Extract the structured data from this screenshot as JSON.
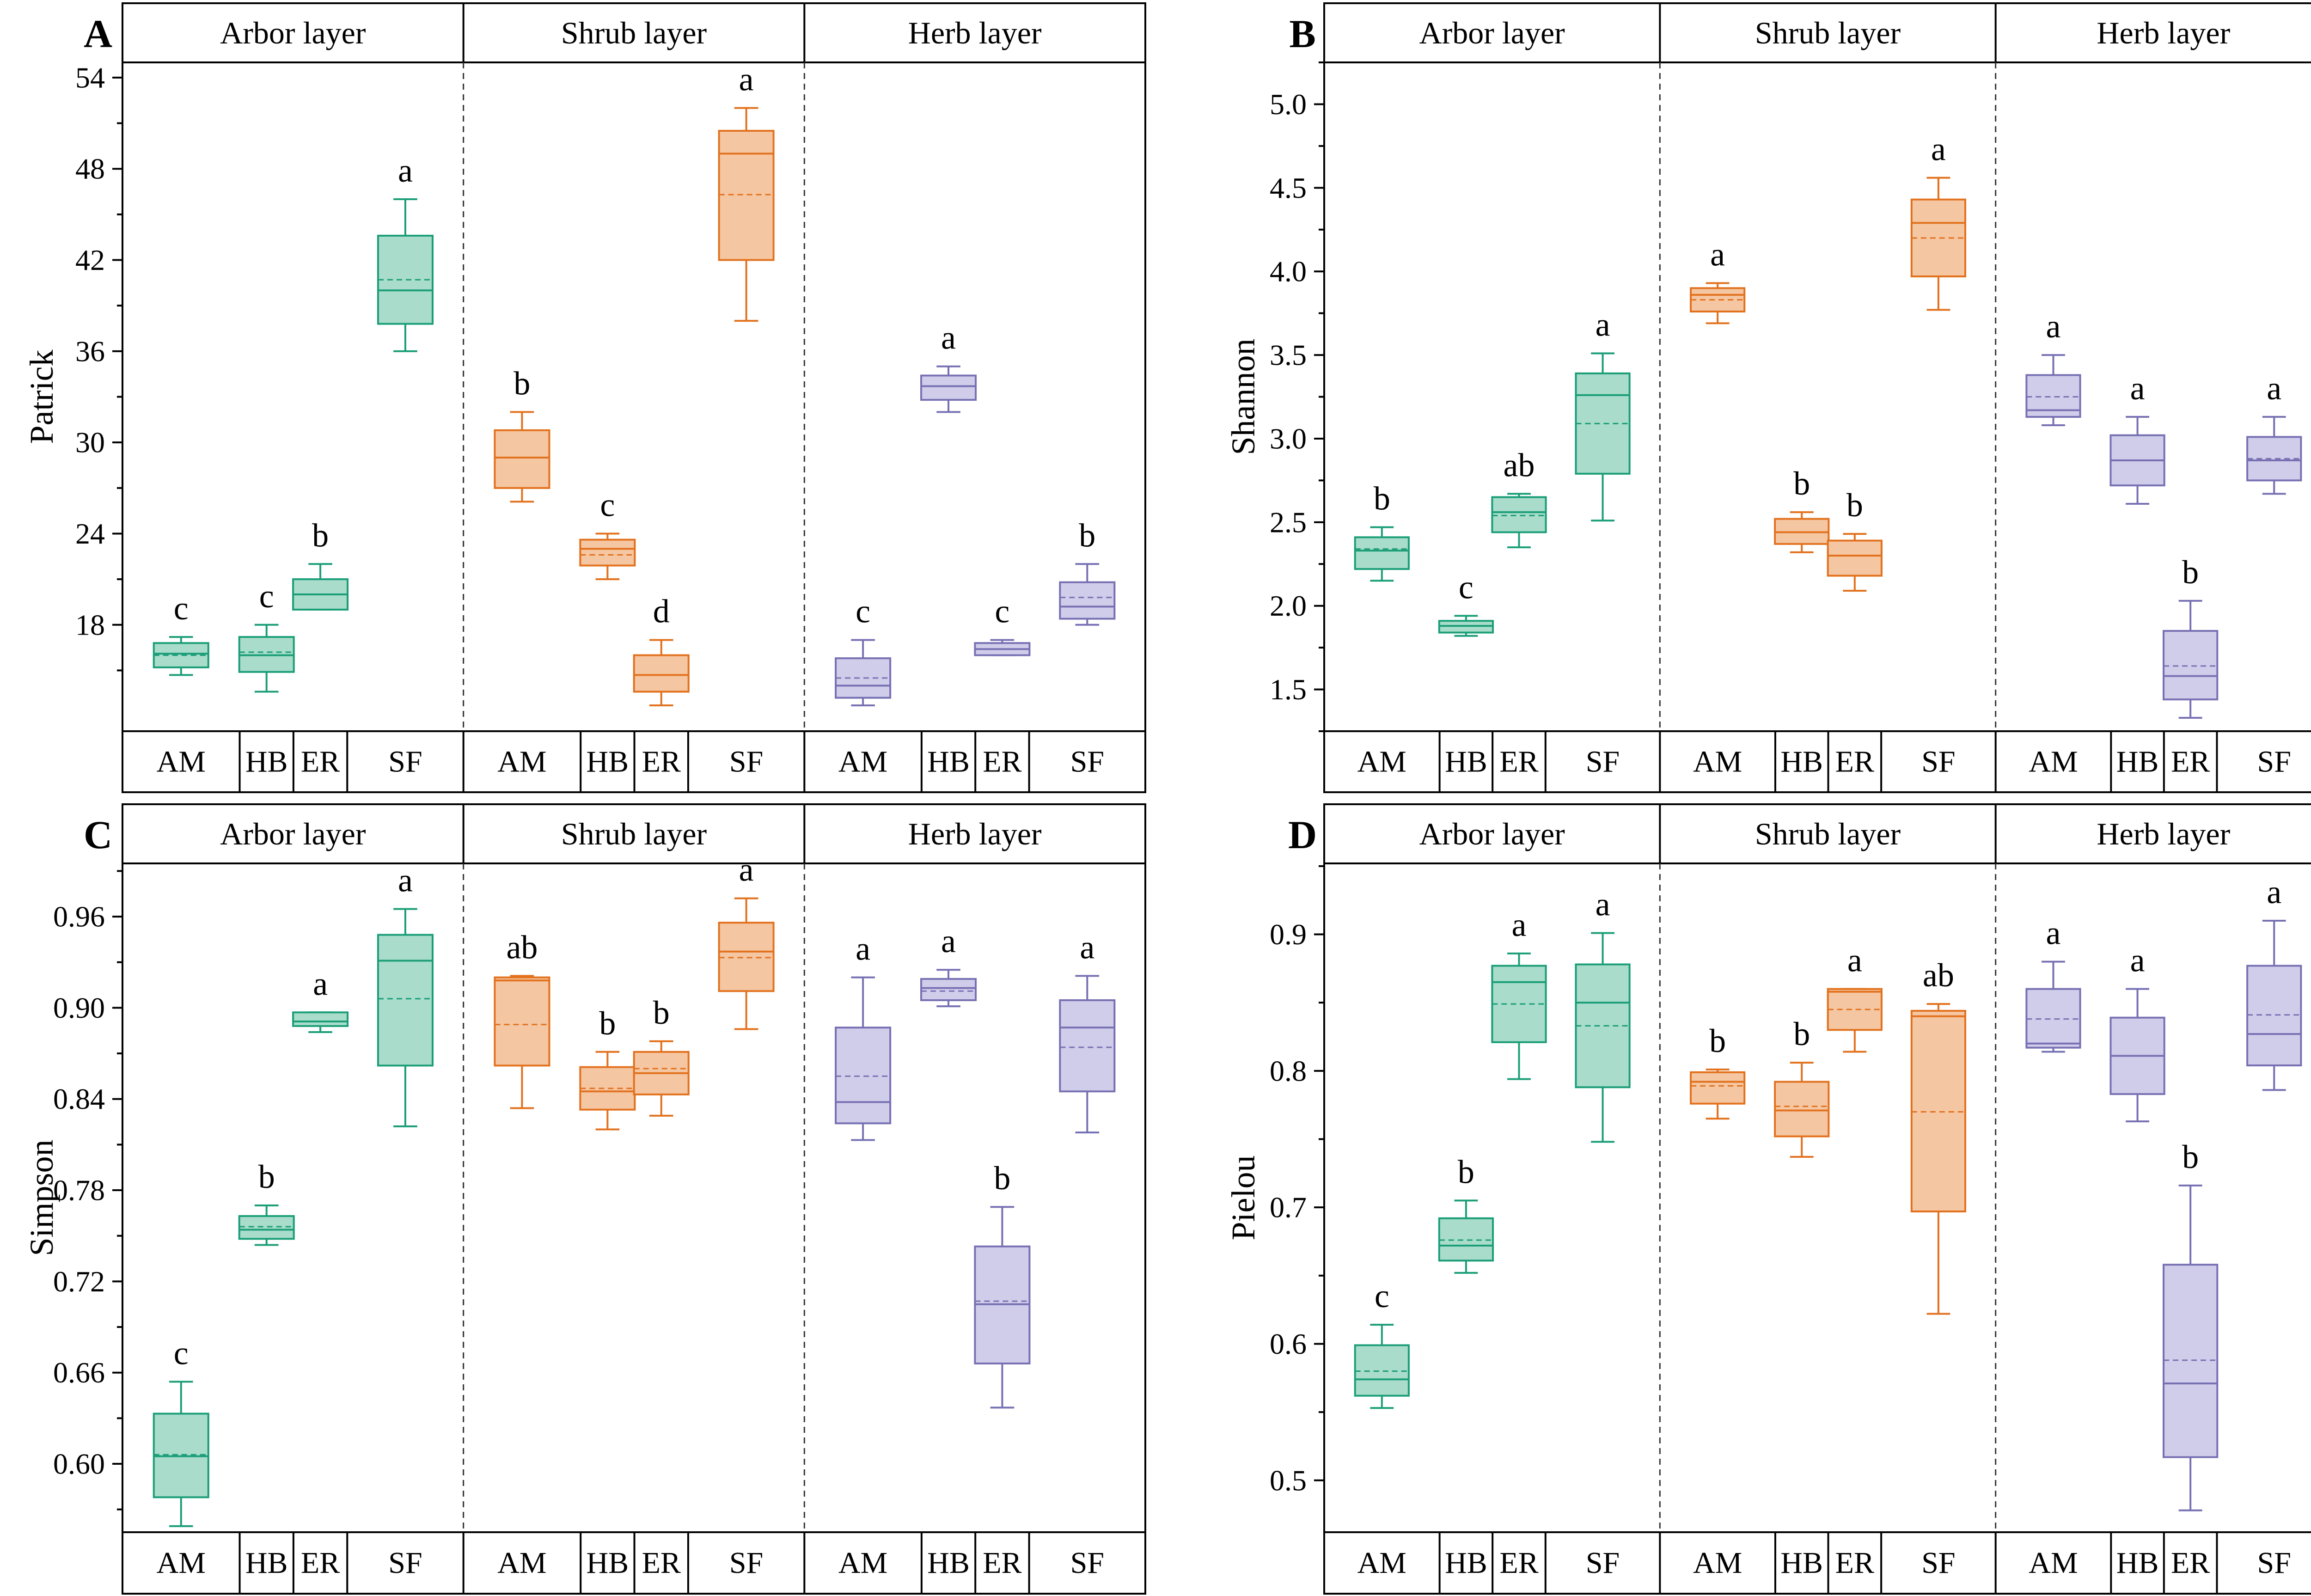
{
  "colors": {
    "arbor": "#1a9e77",
    "arbor_fill": "#a9dccb",
    "shrub": "#e2711d",
    "shrub_fill": "#f5c6a2",
    "herb": "#7670b3",
    "herb_fill": "#d0cdea"
  },
  "chart_data": [
    {
      "panel": "A",
      "type": "box",
      "ylabel": "Patrick",
      "ylim": [
        11,
        55
      ],
      "yticks": [
        18,
        24,
        30,
        36,
        42,
        48,
        54
      ],
      "ytick_labels": [
        "18",
        "24",
        "30",
        "36",
        "42",
        "48",
        "54"
      ],
      "groups": [
        {
          "layer": "Arbor layer",
          "color": "arbor",
          "categories": [
            "AM",
            "HB",
            "ER",
            "SF"
          ],
          "boxes": [
            {
              "cat": "AM",
              "min": 14.7,
              "q1": 15.2,
              "median": 16.1,
              "mean": 16.0,
              "q3": 16.8,
              "max": 17.2,
              "label": "c"
            },
            {
              "cat": "HB",
              "min": 13.6,
              "q1": 14.9,
              "median": 16.0,
              "mean": 16.2,
              "q3": 17.2,
              "max": 18.0,
              "label": "c"
            },
            {
              "cat": "ER",
              "min": 19.0,
              "q1": 19.0,
              "median": 20.0,
              "mean": 20.0,
              "q3": 21.0,
              "max": 22.0,
              "label": "b"
            },
            {
              "cat": "SF",
              "min": 36.0,
              "q1": 37.8,
              "median": 40.0,
              "mean": 40.7,
              "q3": 43.6,
              "max": 46.0,
              "label": "a"
            }
          ]
        },
        {
          "layer": "Shrub layer",
          "color": "shrub",
          "categories": [
            "AM",
            "HB",
            "ER",
            "SF"
          ],
          "boxes": [
            {
              "cat": "AM",
              "min": 26.1,
              "q1": 27.0,
              "median": 29.0,
              "mean": 29.0,
              "q3": 30.8,
              "max": 32.0,
              "label": "b"
            },
            {
              "cat": "HB",
              "min": 21.0,
              "q1": 21.9,
              "median": 23.0,
              "mean": 22.6,
              "q3": 23.6,
              "max": 24.0,
              "label": "c"
            },
            {
              "cat": "ER",
              "min": 12.7,
              "q1": 13.6,
              "median": 14.7,
              "mean": 14.7,
              "q3": 16.0,
              "max": 17.0,
              "label": "d"
            },
            {
              "cat": "SF",
              "min": 38.0,
              "q1": 42.0,
              "median": 49.0,
              "mean": 46.3,
              "q3": 50.5,
              "max": 52.0,
              "label": "a"
            }
          ]
        },
        {
          "layer": "Herb layer",
          "color": "herb",
          "categories": [
            "AM",
            "HB",
            "ER",
            "SF"
          ],
          "boxes": [
            {
              "cat": "AM",
              "min": 12.7,
              "q1": 13.2,
              "median": 14.0,
              "mean": 14.5,
              "q3": 15.8,
              "max": 17.0,
              "label": "c"
            },
            {
              "cat": "HB",
              "min": 32.0,
              "q1": 32.8,
              "median": 33.7,
              "mean": 33.7,
              "q3": 34.4,
              "max": 35.0,
              "label": "a"
            },
            {
              "cat": "ER",
              "min": 16.0,
              "q1": 16.0,
              "median": 16.4,
              "mean": 16.4,
              "q3": 16.8,
              "max": 17.0,
              "label": "c"
            },
            {
              "cat": "SF",
              "min": 18.0,
              "q1": 18.4,
              "median": 19.2,
              "mean": 19.8,
              "q3": 20.8,
              "max": 22.0,
              "label": "b"
            }
          ]
        }
      ]
    },
    {
      "panel": "B",
      "type": "box",
      "ylabel": "Shannon",
      "ylim": [
        1.25,
        5.25
      ],
      "yticks": [
        1.5,
        2.0,
        2.5,
        3.0,
        3.5,
        4.0,
        4.5,
        5.0
      ],
      "ytick_labels": [
        "1.5",
        "2.0",
        "2.5",
        "3.0",
        "3.5",
        "4.0",
        "4.5",
        "5.0"
      ],
      "groups": [
        {
          "layer": "Arbor layer",
          "color": "arbor",
          "categories": [
            "AM",
            "HB",
            "ER",
            "SF"
          ],
          "boxes": [
            {
              "cat": "AM",
              "min": 2.15,
              "q1": 2.22,
              "median": 2.33,
              "mean": 2.34,
              "q3": 2.41,
              "max": 2.47,
              "label": "b"
            },
            {
              "cat": "HB",
              "min": 1.82,
              "q1": 1.84,
              "median": 1.88,
              "mean": 1.88,
              "q3": 1.91,
              "max": 1.94,
              "label": "c"
            },
            {
              "cat": "ER",
              "min": 2.35,
              "q1": 2.44,
              "median": 2.56,
              "mean": 2.54,
              "q3": 2.65,
              "max": 2.67,
              "label": "ab"
            },
            {
              "cat": "SF",
              "min": 2.51,
              "q1": 2.79,
              "median": 3.26,
              "mean": 3.09,
              "q3": 3.39,
              "max": 3.51,
              "label": "a"
            }
          ]
        },
        {
          "layer": "Shrub layer",
          "color": "shrub",
          "categories": [
            "AM",
            "HB",
            "ER",
            "SF"
          ],
          "boxes": [
            {
              "cat": "AM",
              "min": 3.69,
              "q1": 3.76,
              "median": 3.86,
              "mean": 3.83,
              "q3": 3.9,
              "max": 3.93,
              "label": "a"
            },
            {
              "cat": "HB",
              "min": 2.32,
              "q1": 2.37,
              "median": 2.44,
              "mean": 2.44,
              "q3": 2.52,
              "max": 2.56,
              "label": "b"
            },
            {
              "cat": "ER",
              "min": 2.09,
              "q1": 2.18,
              "median": 2.3,
              "mean": 2.3,
              "q3": 2.39,
              "max": 2.43,
              "label": "b"
            },
            {
              "cat": "SF",
              "min": 3.77,
              "q1": 3.97,
              "median": 4.29,
              "mean": 4.2,
              "q3": 4.43,
              "max": 4.56,
              "label": "a"
            }
          ]
        },
        {
          "layer": "Herb layer",
          "color": "herb",
          "categories": [
            "AM",
            "HB",
            "ER",
            "SF"
          ],
          "boxes": [
            {
              "cat": "AM",
              "min": 3.08,
              "q1": 3.13,
              "median": 3.17,
              "mean": 3.25,
              "q3": 3.38,
              "max": 3.5,
              "label": "a"
            },
            {
              "cat": "HB",
              "min": 2.61,
              "q1": 2.72,
              "median": 2.87,
              "mean": 2.87,
              "q3": 3.02,
              "max": 3.13,
              "label": "a"
            },
            {
              "cat": "ER",
              "min": 1.33,
              "q1": 1.44,
              "median": 1.58,
              "mean": 1.64,
              "q3": 1.85,
              "max": 2.03,
              "label": "b"
            },
            {
              "cat": "SF",
              "min": 2.67,
              "q1": 2.75,
              "median": 2.87,
              "mean": 2.88,
              "q3": 3.01,
              "max": 3.13,
              "label": "a"
            }
          ]
        }
      ]
    },
    {
      "panel": "C",
      "type": "box",
      "ylabel": "Simpson",
      "ylim": [
        0.555,
        0.995
      ],
      "yticks": [
        0.6,
        0.66,
        0.72,
        0.78,
        0.84,
        0.9,
        0.96
      ],
      "ytick_labels": [
        "0.60",
        "0.66",
        "0.72",
        "0.78",
        "0.84",
        "0.90",
        "0.96"
      ],
      "groups": [
        {
          "layer": "Arbor layer",
          "color": "arbor",
          "categories": [
            "AM",
            "HB",
            "ER",
            "SF"
          ],
          "boxes": [
            {
              "cat": "AM",
              "min": 0.559,
              "q1": 0.578,
              "median": 0.605,
              "mean": 0.606,
              "q3": 0.633,
              "max": 0.654,
              "label": "c"
            },
            {
              "cat": "HB",
              "min": 0.744,
              "q1": 0.748,
              "median": 0.754,
              "mean": 0.756,
              "q3": 0.763,
              "max": 0.77,
              "label": "b"
            },
            {
              "cat": "ER",
              "min": 0.884,
              "q1": 0.888,
              "median": 0.891,
              "mean": 0.891,
              "q3": 0.897,
              "max": 0.897,
              "label": "a"
            },
            {
              "cat": "SF",
              "min": 0.822,
              "q1": 0.862,
              "median": 0.931,
              "mean": 0.906,
              "q3": 0.948,
              "max": 0.965,
              "label": "a"
            }
          ]
        },
        {
          "layer": "Shrub layer",
          "color": "shrub",
          "categories": [
            "AM",
            "HB",
            "ER",
            "SF"
          ],
          "boxes": [
            {
              "cat": "AM",
              "min": 0.834,
              "q1": 0.862,
              "median": 0.918,
              "mean": 0.889,
              "q3": 0.92,
              "max": 0.921,
              "label": "ab"
            },
            {
              "cat": "HB",
              "min": 0.82,
              "q1": 0.833,
              "median": 0.845,
              "mean": 0.847,
              "q3": 0.861,
              "max": 0.871,
              "label": "b"
            },
            {
              "cat": "ER",
              "min": 0.829,
              "q1": 0.843,
              "median": 0.857,
              "mean": 0.86,
              "q3": 0.871,
              "max": 0.878,
              "label": "b"
            },
            {
              "cat": "SF",
              "min": 0.886,
              "q1": 0.911,
              "median": 0.937,
              "mean": 0.933,
              "q3": 0.956,
              "max": 0.972,
              "label": "a"
            }
          ]
        },
        {
          "layer": "Herb layer",
          "color": "herb",
          "categories": [
            "AM",
            "HB",
            "ER",
            "SF"
          ],
          "boxes": [
            {
              "cat": "AM",
              "min": 0.813,
              "q1": 0.824,
              "median": 0.838,
              "mean": 0.855,
              "q3": 0.887,
              "max": 0.92,
              "label": "a"
            },
            {
              "cat": "HB",
              "min": 0.901,
              "q1": 0.905,
              "median": 0.913,
              "mean": 0.911,
              "q3": 0.919,
              "max": 0.925,
              "label": "a"
            },
            {
              "cat": "ER",
              "min": 0.637,
              "q1": 0.666,
              "median": 0.705,
              "mean": 0.707,
              "q3": 0.743,
              "max": 0.769,
              "label": "b"
            },
            {
              "cat": "SF",
              "min": 0.818,
              "q1": 0.845,
              "median": 0.887,
              "mean": 0.874,
              "q3": 0.905,
              "max": 0.921,
              "label": "a"
            }
          ]
        }
      ]
    },
    {
      "panel": "D",
      "type": "box",
      "ylabel": "Pielou",
      "ylim": [
        0.462,
        0.952
      ],
      "yticks": [
        0.5,
        0.6,
        0.7,
        0.8,
        0.9
      ],
      "ytick_labels": [
        "0.5",
        "0.6",
        "0.7",
        "0.8",
        "0.9"
      ],
      "groups": [
        {
          "layer": "Arbor layer",
          "color": "arbor",
          "categories": [
            "AM",
            "HB",
            "ER",
            "SF"
          ],
          "boxes": [
            {
              "cat": "AM",
              "min": 0.553,
              "q1": 0.562,
              "median": 0.574,
              "mean": 0.58,
              "q3": 0.599,
              "max": 0.614,
              "label": "c"
            },
            {
              "cat": "HB",
              "min": 0.652,
              "q1": 0.661,
              "median": 0.672,
              "mean": 0.676,
              "q3": 0.692,
              "max": 0.705,
              "label": "b"
            },
            {
              "cat": "ER",
              "min": 0.794,
              "q1": 0.821,
              "median": 0.865,
              "mean": 0.849,
              "q3": 0.877,
              "max": 0.886,
              "label": "a"
            },
            {
              "cat": "SF",
              "min": 0.748,
              "q1": 0.788,
              "median": 0.85,
              "mean": 0.833,
              "q3": 0.878,
              "max": 0.901,
              "label": "a"
            }
          ]
        },
        {
          "layer": "Shrub layer",
          "color": "shrub",
          "categories": [
            "AM",
            "HB",
            "ER",
            "SF"
          ],
          "boxes": [
            {
              "cat": "AM",
              "min": 0.765,
              "q1": 0.776,
              "median": 0.792,
              "mean": 0.789,
              "q3": 0.799,
              "max": 0.801,
              "label": "b"
            },
            {
              "cat": "HB",
              "min": 0.737,
              "q1": 0.752,
              "median": 0.771,
              "mean": 0.774,
              "q3": 0.792,
              "max": 0.806,
              "label": "b"
            },
            {
              "cat": "ER",
              "min": 0.814,
              "q1": 0.83,
              "median": 0.858,
              "mean": 0.845,
              "q3": 0.86,
              "max": 0.86,
              "label": "a"
            },
            {
              "cat": "SF",
              "min": 0.622,
              "q1": 0.697,
              "median": 0.84,
              "mean": 0.77,
              "q3": 0.844,
              "max": 0.849,
              "label": "ab"
            }
          ]
        },
        {
          "layer": "Herb layer",
          "color": "herb",
          "categories": [
            "AM",
            "HB",
            "ER",
            "SF"
          ],
          "boxes": [
            {
              "cat": "AM",
              "min": 0.814,
              "q1": 0.817,
              "median": 0.82,
              "mean": 0.838,
              "q3": 0.86,
              "max": 0.88,
              "label": "a"
            },
            {
              "cat": "HB",
              "min": 0.763,
              "q1": 0.783,
              "median": 0.811,
              "mean": 0.811,
              "q3": 0.839,
              "max": 0.86,
              "label": "a"
            },
            {
              "cat": "ER",
              "min": 0.478,
              "q1": 0.517,
              "median": 0.571,
              "mean": 0.588,
              "q3": 0.658,
              "max": 0.716,
              "label": "b"
            },
            {
              "cat": "SF",
              "min": 0.786,
              "q1": 0.804,
              "median": 0.827,
              "mean": 0.841,
              "q3": 0.877,
              "max": 0.91,
              "label": "a"
            }
          ]
        }
      ]
    }
  ]
}
